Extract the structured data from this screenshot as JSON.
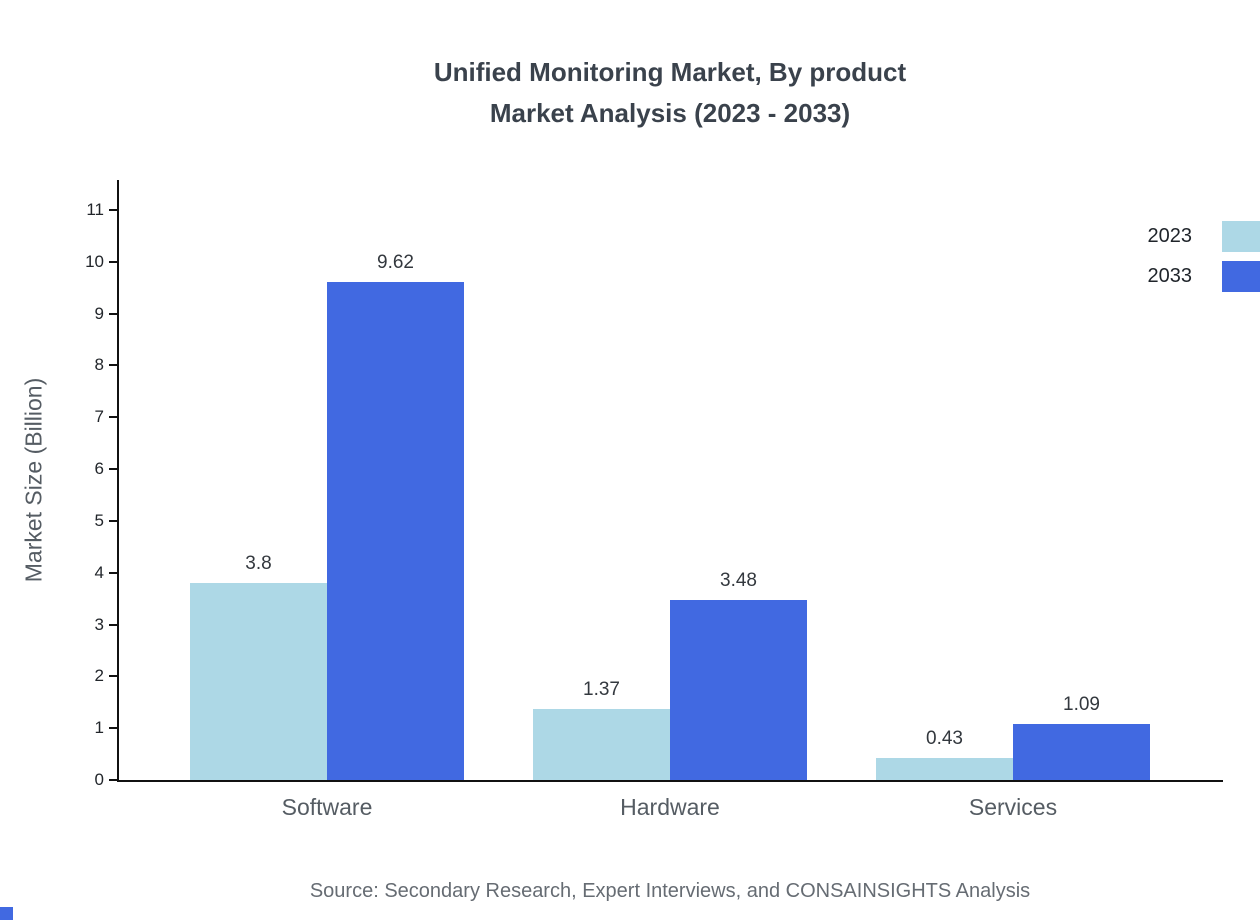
{
  "title": {
    "line1": "Unified Monitoring Market, By product",
    "line2": "Market Analysis (2023 - 2033)"
  },
  "source": "Source: Secondary Research, Expert Interviews, and CONSAINSIGHTS Analysis",
  "accent_color": "#4169E1",
  "chart_data": {
    "type": "bar",
    "categories": [
      "Software",
      "Hardware",
      "Services"
    ],
    "series": [
      {
        "name": "2023",
        "color": "#ADD8E6",
        "values": [
          3.8,
          1.37,
          0.43
        ]
      },
      {
        "name": "2033",
        "color": "#4169E1",
        "values": [
          9.62,
          3.48,
          1.09
        ]
      }
    ],
    "title": "Unified Monitoring Market, By product Market Analysis (2023 - 2033)",
    "xlabel": "",
    "ylabel": "Market Size (Billion)",
    "ylim": [
      0,
      11
    ],
    "yticks": [
      0,
      1,
      2,
      3,
      4,
      5,
      6,
      7,
      8,
      9,
      10,
      11
    ],
    "grid": false,
    "legend_position": "top-right",
    "value_labels": true
  }
}
